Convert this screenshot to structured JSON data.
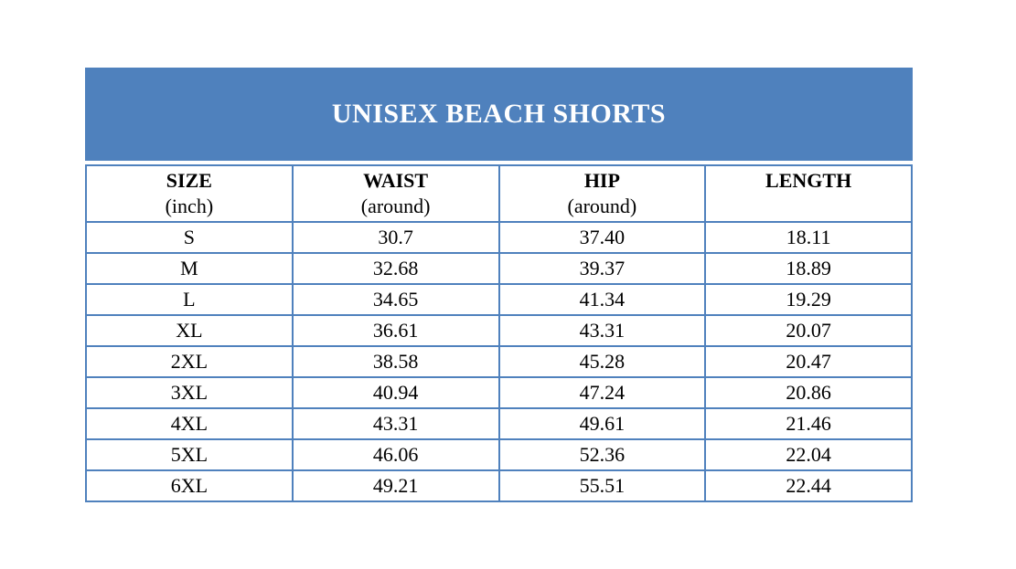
{
  "banner": {
    "title": "UNISEX BEACH SHORTS"
  },
  "colors": {
    "banner_bg": "#4F81BD",
    "banner_text": "#FFFFFF",
    "table_border": "#4F81BD",
    "cell_text": "#000000"
  },
  "table": {
    "columns": [
      {
        "label": "SIZE",
        "sublabel": "(inch)"
      },
      {
        "label": "WAIST",
        "sublabel": "(around)"
      },
      {
        "label": "HIP",
        "sublabel": "(around)"
      },
      {
        "label": "LENGTH",
        "sublabel": ""
      }
    ],
    "rows": [
      {
        "size": "S",
        "waist": "30.7",
        "hip": "37.40",
        "length": "18.11"
      },
      {
        "size": "M",
        "waist": "32.68",
        "hip": "39.37",
        "length": "18.89"
      },
      {
        "size": "L",
        "waist": "34.65",
        "hip": "41.34",
        "length": "19.29"
      },
      {
        "size": "XL",
        "waist": "36.61",
        "hip": "43.31",
        "length": "20.07"
      },
      {
        "size": "2XL",
        "waist": "38.58",
        "hip": "45.28",
        "length": "20.47"
      },
      {
        "size": "3XL",
        "waist": "40.94",
        "hip": "47.24",
        "length": "20.86"
      },
      {
        "size": "4XL",
        "waist": "43.31",
        "hip": "49.61",
        "length": "21.46"
      },
      {
        "size": "5XL",
        "waist": "46.06",
        "hip": "52.36",
        "length": "22.04"
      },
      {
        "size": "6XL",
        "waist": "49.21",
        "hip": "55.51",
        "length": "22.44"
      }
    ]
  },
  "chart_data": {
    "type": "table",
    "title": "UNISEX BEACH SHORTS",
    "columns": [
      "SIZE (inch)",
      "WAIST (around)",
      "HIP (around)",
      "LENGTH"
    ],
    "rows": [
      [
        "S",
        30.7,
        37.4,
        18.11
      ],
      [
        "M",
        32.68,
        39.37,
        18.89
      ],
      [
        "L",
        34.65,
        41.34,
        19.29
      ],
      [
        "XL",
        36.61,
        43.31,
        20.07
      ],
      [
        "2XL",
        38.58,
        45.28,
        20.47
      ],
      [
        "3XL",
        40.94,
        47.24,
        20.86
      ],
      [
        "4XL",
        43.31,
        49.61,
        21.46
      ],
      [
        "5XL",
        46.06,
        52.36,
        22.04
      ],
      [
        "6XL",
        49.21,
        55.51,
        22.44
      ]
    ]
  }
}
